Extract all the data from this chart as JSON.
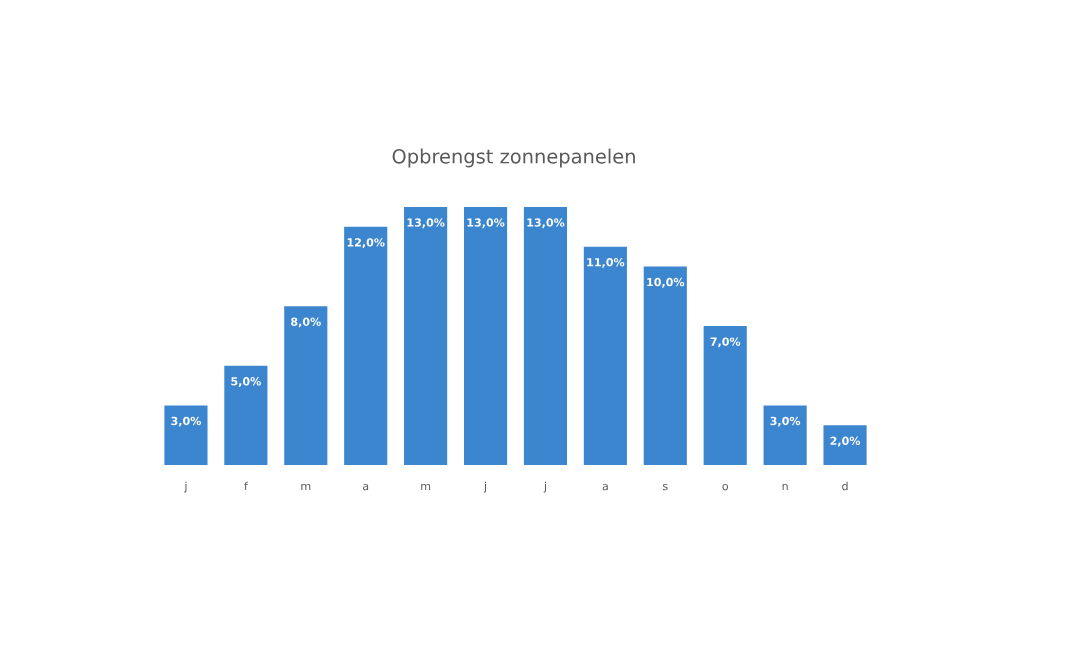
{
  "chart_data": {
    "type": "bar",
    "title": "Opbrengst zonnepanelen",
    "categories": [
      "j",
      "f",
      "m",
      "a",
      "m",
      "j",
      "j",
      "a",
      "s",
      "o",
      "n",
      "d"
    ],
    "values": [
      3,
      5,
      8,
      12,
      13,
      13,
      13,
      11,
      10,
      7,
      3,
      2
    ],
    "value_labels": [
      "3,0%",
      "5,0%",
      "8,0%",
      "12,0%",
      "13,0%",
      "13,0%",
      "13,0%",
      "11,0%",
      "10,0%",
      "7,0%",
      "3,0%",
      "2,0%"
    ],
    "color": "#3c86d0",
    "grid": false,
    "legend": false
  }
}
